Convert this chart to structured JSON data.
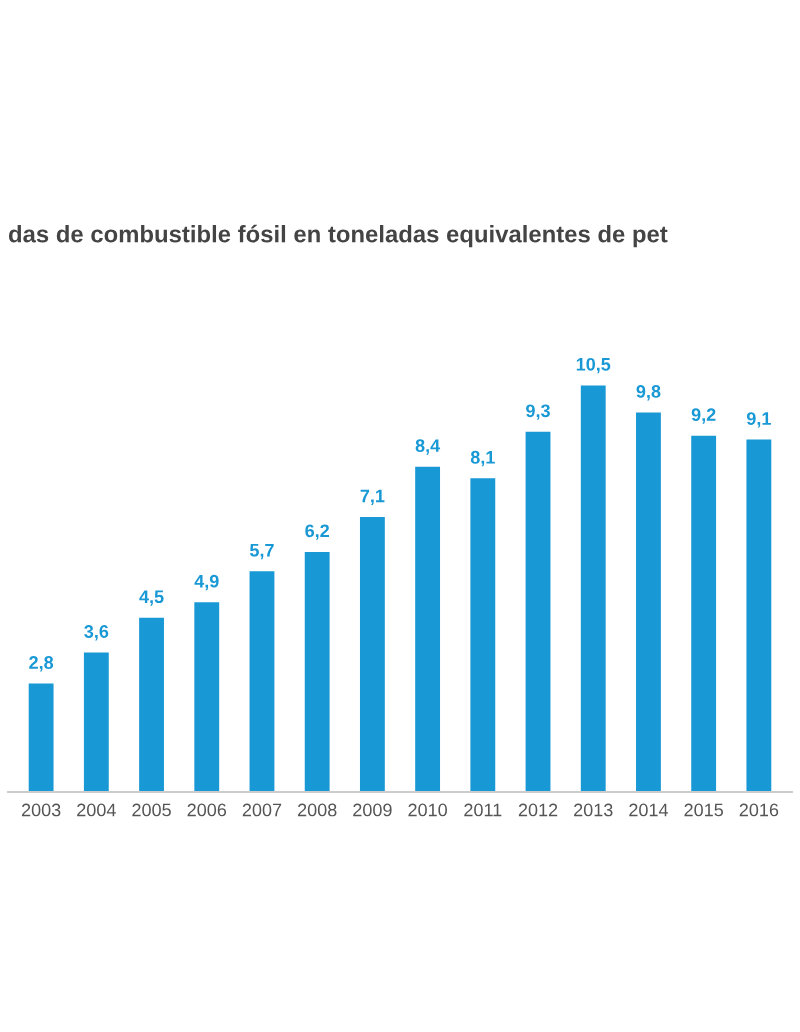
{
  "chart_data": {
    "type": "bar",
    "title": "das de combustible fósil en toneladas equivalentes de pet",
    "categories": [
      "2003",
      "2004",
      "2005",
      "2006",
      "2007",
      "2008",
      "2009",
      "2010",
      "2011",
      "2012",
      "2013",
      "2014",
      "2015",
      "2016"
    ],
    "values": [
      2.8,
      3.6,
      4.5,
      4.9,
      5.7,
      6.2,
      7.1,
      8.4,
      8.1,
      9.3,
      10.5,
      9.8,
      9.2,
      9.1
    ],
    "value_labels": [
      "2,8",
      "3,6",
      "4,5",
      "4,9",
      "5,7",
      "6,2",
      "7,1",
      "8,4",
      "8,1",
      "9,3",
      "10,5",
      "9,8",
      "9,2",
      "9,1"
    ],
    "color": "#1898d5",
    "grid": false,
    "legend": false
  }
}
